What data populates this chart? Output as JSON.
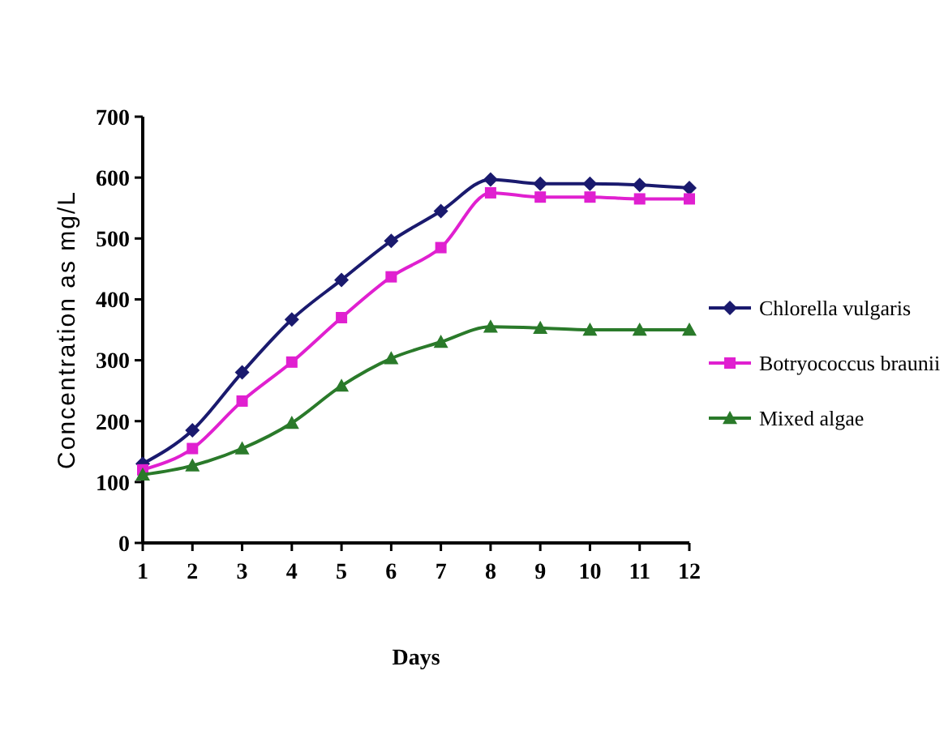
{
  "chart_data": {
    "type": "line",
    "xlabel": "Days",
    "ylabel": "Concentration as mg/L",
    "x": [
      1,
      2,
      3,
      4,
      5,
      6,
      7,
      8,
      9,
      10,
      11,
      12
    ],
    "xlim": [
      1,
      12
    ],
    "xticks": [
      1,
      2,
      3,
      4,
      5,
      6,
      7,
      8,
      9,
      10,
      11,
      12
    ],
    "ylim": [
      0,
      700
    ],
    "yticks": [
      0,
      100,
      200,
      300,
      400,
      500,
      600,
      700
    ],
    "grid": false,
    "legend": "right",
    "line_style": "solid",
    "series": [
      {
        "name": "Chlorella vulgaris",
        "color": "#1a1a6e",
        "marker": "diamond",
        "values": [
          130,
          185,
          280,
          367,
          432,
          496,
          545,
          597,
          590,
          590,
          588,
          583
        ]
      },
      {
        "name": "Botryococcus braunii",
        "color": "#e020d0",
        "marker": "square",
        "values": [
          120,
          155,
          233,
          297,
          370,
          437,
          485,
          575,
          568,
          568,
          565,
          565
        ]
      },
      {
        "name": "Mixed algae",
        "color": "#2a7a2a",
        "marker": "triangle",
        "values": [
          112,
          127,
          155,
          197,
          258,
          303,
          330,
          355,
          353,
          350,
          350,
          350
        ]
      }
    ]
  }
}
